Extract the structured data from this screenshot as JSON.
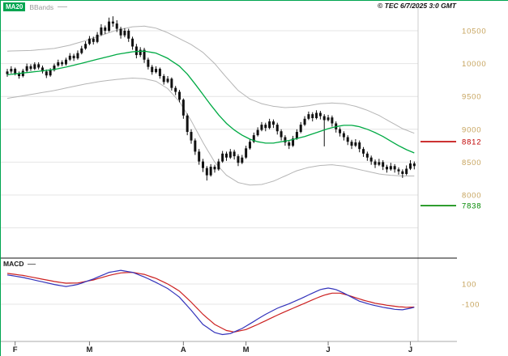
{
  "header": {
    "ma20_label": "MA20",
    "bbands_label": "BBands",
    "copyright": "© TEC 6/7/2025 3:0 GMT"
  },
  "macd_panel": {
    "label": "MACD"
  },
  "colors": {
    "ma20": "#00aa44",
    "bband": "#b5b5b5",
    "candle": "#111111",
    "axis_label": "#c6a35c",
    "grid": "#e4e4e4",
    "separator": "#111111",
    "axis_line": "#aaaaaa",
    "month_label": "#222222",
    "macd_line": "#3333bb",
    "macd_signal": "#cc2020"
  },
  "chart_data": {
    "type": "candlestick",
    "title": "",
    "price_axis": {
      "ticks": [
        10500,
        10000,
        9500,
        9000,
        8500,
        8000
      ],
      "unlabeled_gridlines": [
        7500
      ],
      "min": 7700,
      "max": 10750
    },
    "levels": [
      {
        "value": 8812,
        "color": "#c00000"
      },
      {
        "value": 7838,
        "color": "#008800"
      }
    ],
    "months": [
      {
        "label": "F",
        "i": 2
      },
      {
        "label": "M",
        "i": 21
      },
      {
        "label": "A",
        "i": 45
      },
      {
        "label": "M",
        "i": 61
      },
      {
        "label": "J",
        "i": 82
      },
      {
        "label": "J",
        "i": 103
      }
    ],
    "candles": [
      [
        9840,
        9920,
        9800,
        9880
      ],
      [
        9880,
        9960,
        9850,
        9920
      ],
      [
        9920,
        9940,
        9820,
        9850
      ],
      [
        9850,
        9880,
        9770,
        9810
      ],
      [
        9810,
        9920,
        9790,
        9890
      ],
      [
        9890,
        10000,
        9870,
        9960
      ],
      [
        9960,
        9990,
        9890,
        9920
      ],
      [
        9920,
        10020,
        9900,
        9990
      ],
      [
        9990,
        10020,
        9910,
        9940
      ],
      [
        9940,
        9970,
        9850,
        9880
      ],
      [
        9880,
        9910,
        9780,
        9820
      ],
      [
        9820,
        9930,
        9800,
        9900
      ],
      [
        9900,
        10000,
        9880,
        9970
      ],
      [
        9970,
        10060,
        9950,
        10020
      ],
      [
        10020,
        10050,
        9960,
        9990
      ],
      [
        9990,
        10090,
        9970,
        10060
      ],
      [
        10060,
        10160,
        10040,
        10120
      ],
      [
        10120,
        10150,
        10040,
        10080
      ],
      [
        10080,
        10200,
        10060,
        10160
      ],
      [
        10160,
        10270,
        10140,
        10230
      ],
      [
        10230,
        10340,
        10210,
        10300
      ],
      [
        10300,
        10420,
        10280,
        10380
      ],
      [
        10380,
        10410,
        10290,
        10330
      ],
      [
        10330,
        10480,
        10310,
        10440
      ],
      [
        10440,
        10600,
        10420,
        10550
      ],
      [
        10550,
        10580,
        10450,
        10500
      ],
      [
        10500,
        10700,
        10480,
        10640
      ],
      [
        10640,
        10720,
        10560,
        10610
      ],
      [
        10610,
        10660,
        10480,
        10530
      ],
      [
        10530,
        10560,
        10380,
        10430
      ],
      [
        10430,
        10540,
        10400,
        10500
      ],
      [
        10500,
        10530,
        10330,
        10380
      ],
      [
        10380,
        10410,
        10210,
        10260
      ],
      [
        10260,
        10300,
        10080,
        10130
      ],
      [
        10130,
        10250,
        10100,
        10210
      ],
      [
        10210,
        10240,
        10010,
        10060
      ],
      [
        10060,
        10090,
        9910,
        9950
      ],
      [
        9950,
        9980,
        9830,
        9870
      ],
      [
        9870,
        9960,
        9850,
        9920
      ],
      [
        9920,
        9940,
        9770,
        9810
      ],
      [
        9810,
        9840,
        9680,
        9720
      ],
      [
        9720,
        9810,
        9700,
        9770
      ],
      [
        9770,
        9790,
        9590,
        9630
      ],
      [
        9630,
        9660,
        9520,
        9570
      ],
      [
        9570,
        9600,
        9410,
        9450
      ],
      [
        9450,
        9470,
        9160,
        9210
      ],
      [
        9210,
        9240,
        8910,
        8960
      ],
      [
        8960,
        9000,
        8780,
        8830
      ],
      [
        8830,
        8860,
        8610,
        8660
      ],
      [
        8660,
        8700,
        8460,
        8510
      ],
      [
        8510,
        8550,
        8350,
        8410
      ],
      [
        8410,
        8440,
        8220,
        8300
      ],
      [
        8300,
        8470,
        8280,
        8430
      ],
      [
        8430,
        8460,
        8340,
        8390
      ],
      [
        8390,
        8550,
        8370,
        8510
      ],
      [
        8510,
        8670,
        8490,
        8630
      ],
      [
        8630,
        8660,
        8520,
        8570
      ],
      [
        8570,
        8700,
        8550,
        8660
      ],
      [
        8660,
        8690,
        8540,
        8590
      ],
      [
        8590,
        8620,
        8440,
        8490
      ],
      [
        8490,
        8610,
        8470,
        8570
      ],
      [
        8570,
        8750,
        8550,
        8710
      ],
      [
        8710,
        8850,
        8690,
        8810
      ],
      [
        8810,
        8950,
        8790,
        8910
      ],
      [
        8910,
        9030,
        8890,
        8990
      ],
      [
        8990,
        9110,
        8970,
        9070
      ],
      [
        9070,
        9100,
        8970,
        9020
      ],
      [
        9020,
        9160,
        9000,
        9120
      ],
      [
        9120,
        9150,
        9020,
        9070
      ],
      [
        9070,
        9100,
        8920,
        8970
      ],
      [
        8970,
        9000,
        8830,
        8880
      ],
      [
        8880,
        8910,
        8750,
        8800
      ],
      [
        8800,
        8830,
        8700,
        8750
      ],
      [
        8750,
        8900,
        8730,
        8860
      ],
      [
        8860,
        9000,
        8840,
        8960
      ],
      [
        8960,
        9110,
        8940,
        9070
      ],
      [
        9070,
        9200,
        9050,
        9160
      ],
      [
        9160,
        9270,
        9140,
        9230
      ],
      [
        9230,
        9260,
        9120,
        9170
      ],
      [
        9170,
        9290,
        9150,
        9250
      ],
      [
        9250,
        9280,
        9150,
        9200
      ],
      [
        9200,
        9230,
        8740,
        9140
      ],
      [
        9140,
        9220,
        9120,
        9180
      ],
      [
        9180,
        9210,
        9040,
        9090
      ],
      [
        9090,
        9120,
        8950,
        9000
      ],
      [
        9000,
        9030,
        8890,
        8940
      ],
      [
        8940,
        8970,
        8830,
        8880
      ],
      [
        8880,
        8910,
        8760,
        8810
      ],
      [
        8810,
        8840,
        8700,
        8750
      ],
      [
        8750,
        8850,
        8730,
        8800
      ],
      [
        8800,
        8830,
        8650,
        8700
      ],
      [
        8700,
        8730,
        8580,
        8630
      ],
      [
        8630,
        8660,
        8520,
        8570
      ],
      [
        8570,
        8600,
        8460,
        8510
      ],
      [
        8510,
        8540,
        8410,
        8460
      ],
      [
        8460,
        8550,
        8440,
        8500
      ],
      [
        8500,
        8530,
        8380,
        8430
      ],
      [
        8430,
        8460,
        8340,
        8390
      ],
      [
        8390,
        8490,
        8370,
        8440
      ],
      [
        8440,
        8470,
        8340,
        8390
      ],
      [
        8390,
        8420,
        8310,
        8360
      ],
      [
        8360,
        8390,
        8260,
        8320
      ],
      [
        8320,
        8450,
        8300,
        8400
      ],
      [
        8400,
        8530,
        8380,
        8480
      ],
      [
        8480,
        8510,
        8390,
        8440
      ]
    ],
    "overlays": {
      "ma20_keypoints": [
        [
          0,
          9830
        ],
        [
          6,
          9870
        ],
        [
          12,
          9910
        ],
        [
          16,
          9960
        ],
        [
          20,
          10020
        ],
        [
          24,
          10080
        ],
        [
          28,
          10140
        ],
        [
          32,
          10180
        ],
        [
          35,
          10190
        ],
        [
          38,
          10160
        ],
        [
          41,
          10080
        ],
        [
          44,
          9960
        ],
        [
          46,
          9840
        ],
        [
          48,
          9690
        ],
        [
          50,
          9530
        ],
        [
          52,
          9370
        ],
        [
          54,
          9220
        ],
        [
          56,
          9090
        ],
        [
          58,
          8990
        ],
        [
          60,
          8910
        ],
        [
          62,
          8850
        ],
        [
          64,
          8810
        ],
        [
          66,
          8790
        ],
        [
          68,
          8790
        ],
        [
          70,
          8810
        ],
        [
          72,
          8830
        ],
        [
          74,
          8860
        ],
        [
          76,
          8890
        ],
        [
          78,
          8930
        ],
        [
          80,
          8970
        ],
        [
          82,
          9010
        ],
        [
          84,
          9040
        ],
        [
          86,
          9060
        ],
        [
          88,
          9060
        ],
        [
          90,
          9040
        ],
        [
          92,
          9000
        ],
        [
          94,
          8950
        ],
        [
          96,
          8890
        ],
        [
          98,
          8820
        ],
        [
          100,
          8750
        ],
        [
          102,
          8690
        ],
        [
          104,
          8640
        ]
      ],
      "bb_upper_keypoints": [
        [
          0,
          10190
        ],
        [
          6,
          10200
        ],
        [
          12,
          10230
        ],
        [
          16,
          10280
        ],
        [
          20,
          10350
        ],
        [
          24,
          10430
        ],
        [
          28,
          10510
        ],
        [
          32,
          10560
        ],
        [
          35,
          10570
        ],
        [
          38,
          10540
        ],
        [
          41,
          10470
        ],
        [
          44,
          10380
        ],
        [
          47,
          10290
        ],
        [
          50,
          10170
        ],
        [
          53,
          10000
        ],
        [
          56,
          9790
        ],
        [
          59,
          9590
        ],
        [
          62,
          9460
        ],
        [
          65,
          9390
        ],
        [
          68,
          9350
        ],
        [
          71,
          9330
        ],
        [
          74,
          9340
        ],
        [
          77,
          9360
        ],
        [
          80,
          9390
        ],
        [
          83,
          9400
        ],
        [
          86,
          9390
        ],
        [
          89,
          9350
        ],
        [
          92,
          9290
        ],
        [
          95,
          9210
        ],
        [
          98,
          9110
        ],
        [
          101,
          9010
        ],
        [
          104,
          8940
        ]
      ],
      "bb_lower_keypoints": [
        [
          0,
          9470
        ],
        [
          6,
          9530
        ],
        [
          12,
          9590
        ],
        [
          16,
          9640
        ],
        [
          20,
          9690
        ],
        [
          24,
          9730
        ],
        [
          28,
          9760
        ],
        [
          32,
          9780
        ],
        [
          35,
          9770
        ],
        [
          38,
          9730
        ],
        [
          41,
          9620
        ],
        [
          44,
          9420
        ],
        [
          47,
          9130
        ],
        [
          50,
          8800
        ],
        [
          53,
          8500
        ],
        [
          56,
          8300
        ],
        [
          59,
          8190
        ],
        [
          62,
          8150
        ],
        [
          65,
          8160
        ],
        [
          68,
          8210
        ],
        [
          71,
          8290
        ],
        [
          74,
          8370
        ],
        [
          77,
          8420
        ],
        [
          80,
          8450
        ],
        [
          83,
          8460
        ],
        [
          86,
          8440
        ],
        [
          89,
          8400
        ],
        [
          92,
          8360
        ],
        [
          95,
          8320
        ],
        [
          98,
          8300
        ],
        [
          101,
          8290
        ],
        [
          104,
          8290
        ]
      ]
    },
    "macd": {
      "type": "line",
      "axis_ticks": [
        100,
        -100
      ],
      "line_keypoints": [
        [
          0,
          190
        ],
        [
          4,
          165
        ],
        [
          8,
          130
        ],
        [
          12,
          95
        ],
        [
          15,
          75
        ],
        [
          18,
          95
        ],
        [
          22,
          150
        ],
        [
          26,
          215
        ],
        [
          29,
          235
        ],
        [
          32,
          215
        ],
        [
          35,
          170
        ],
        [
          38,
          115
        ],
        [
          41,
          55
        ],
        [
          44,
          -30
        ],
        [
          47,
          -160
        ],
        [
          50,
          -300
        ],
        [
          53,
          -380
        ],
        [
          55,
          -400
        ],
        [
          57,
          -390
        ],
        [
          60,
          -340
        ],
        [
          63,
          -270
        ],
        [
          66,
          -200
        ],
        [
          69,
          -140
        ],
        [
          72,
          -95
        ],
        [
          75,
          -45
        ],
        [
          78,
          10
        ],
        [
          80,
          45
        ],
        [
          82,
          60
        ],
        [
          84,
          45
        ],
        [
          86,
          10
        ],
        [
          88,
          -30
        ],
        [
          90,
          -70
        ],
        [
          93,
          -105
        ],
        [
          96,
          -130
        ],
        [
          99,
          -150
        ],
        [
          101,
          -155
        ],
        [
          103,
          -140
        ],
        [
          104,
          -130
        ]
      ],
      "signal_keypoints": [
        [
          0,
          205
        ],
        [
          4,
          185
        ],
        [
          8,
          155
        ],
        [
          12,
          125
        ],
        [
          15,
          108
        ],
        [
          18,
          110
        ],
        [
          22,
          140
        ],
        [
          26,
          185
        ],
        [
          29,
          210
        ],
        [
          32,
          215
        ],
        [
          35,
          195
        ],
        [
          38,
          155
        ],
        [
          41,
          100
        ],
        [
          44,
          30
        ],
        [
          47,
          -80
        ],
        [
          50,
          -200
        ],
        [
          53,
          -300
        ],
        [
          56,
          -360
        ],
        [
          58,
          -375
        ],
        [
          61,
          -350
        ],
        [
          64,
          -300
        ],
        [
          67,
          -245
        ],
        [
          70,
          -190
        ],
        [
          73,
          -140
        ],
        [
          76,
          -90
        ],
        [
          79,
          -40
        ],
        [
          81,
          -10
        ],
        [
          83,
          10
        ],
        [
          85,
          10
        ],
        [
          87,
          -10
        ],
        [
          89,
          -35
        ],
        [
          91,
          -60
        ],
        [
          94,
          -90
        ],
        [
          97,
          -110
        ],
        [
          100,
          -125
        ],
        [
          102,
          -130
        ],
        [
          104,
          -128
        ]
      ]
    }
  }
}
